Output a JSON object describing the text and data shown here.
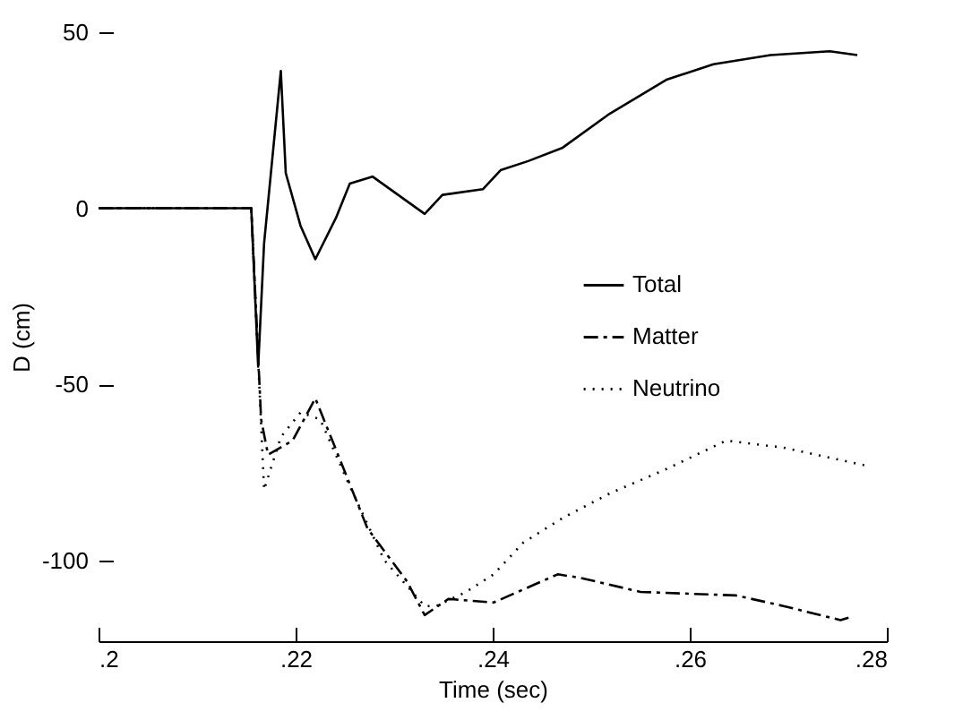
{
  "chart_data": {
    "type": "line",
    "xlabel": "Time (sec)",
    "ylabel": "D (cm)",
    "xlim": [
      0.2,
      0.28
    ],
    "xticks": [
      {
        "value": 0.2,
        "label": ".2"
      },
      {
        "value": 0.22,
        "label": ".22"
      },
      {
        "value": 0.24,
        "label": ".24"
      },
      {
        "value": 0.26,
        "label": ".26"
      },
      {
        "value": 0.28,
        "label": ".28"
      }
    ],
    "ylim": [
      -123,
      50
    ],
    "yticks": [
      -100,
      -50,
      0,
      50
    ],
    "grid": false,
    "legend": "right",
    "series": [
      {
        "name": "Total",
        "color": "#000000",
        "line_style": "solid",
        "x": [
          0.2,
          0.2155,
          0.2162,
          0.2168,
          0.2185,
          0.219,
          0.2205,
          0.222,
          0.2241,
          0.2255,
          0.2278,
          0.2331,
          0.2349,
          0.239,
          0.2408,
          0.2436,
          0.2471,
          0.2519,
          0.2577,
          0.2624,
          0.2682,
          0.2742,
          0.277
        ],
        "values": [
          0,
          0,
          -45,
          -10,
          39,
          10,
          -5,
          -14.5,
          -2.7,
          7,
          9,
          -1.6,
          3.8,
          5.4,
          10.8,
          13.4,
          17.2,
          26.9,
          36.6,
          40.9,
          43.5,
          44.6,
          43.5
        ]
      },
      {
        "name": "Matter",
        "color": "#000000",
        "line_style": "dashed",
        "x": [
          0.2,
          0.2155,
          0.2165,
          0.2172,
          0.2197,
          0.222,
          0.2243,
          0.2273,
          0.2313,
          0.2331,
          0.2355,
          0.2401,
          0.2466,
          0.2489,
          0.255,
          0.2647,
          0.2695,
          0.2753,
          0.2765
        ],
        "values": [
          0,
          0,
          -60,
          -70,
          -66,
          -54,
          -70,
          -91,
          -106,
          -115.6,
          -111,
          -112,
          -104,
          -105,
          -109,
          -110,
          -113,
          -117,
          -116
        ]
      },
      {
        "name": "Neutrino",
        "color": "#000000",
        "line_style": "dotted",
        "x": [
          0.2,
          0.2155,
          0.2168,
          0.2185,
          0.2205,
          0.2225,
          0.2255,
          0.229,
          0.2331,
          0.2343,
          0.2373,
          0.2401,
          0.2431,
          0.2471,
          0.2519,
          0.2577,
          0.2637,
          0.2695,
          0.2777
        ],
        "values": [
          0,
          0,
          -80,
          -65,
          -58,
          -60,
          -79,
          -100,
          -113,
          -113,
          -109,
          -104,
          -95,
          -88,
          -81,
          -74,
          -66,
          -68,
          -73
        ]
      }
    ]
  }
}
